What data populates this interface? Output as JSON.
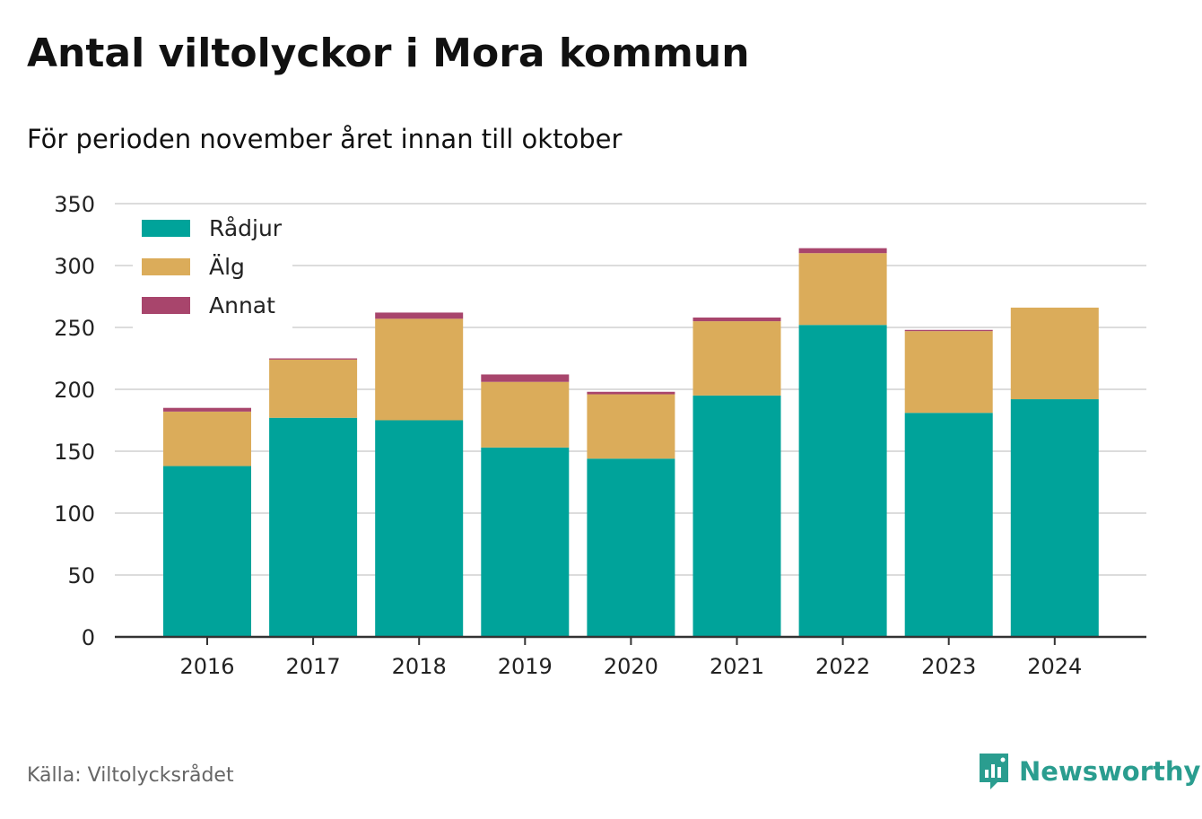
{
  "title": "Antal viltolyckor i Mora kommun",
  "subtitle": "För perioden november året innan till oktober",
  "source": "Källa: Viltolycksrådet",
  "brand": "Newsworthy",
  "colors": {
    "Rådjur": "#00a39a",
    "Älg": "#dbac5a",
    "Annat": "#a8456c",
    "grid": "#dcdcdc",
    "axis": "#333333",
    "brand": "#2a9d8f"
  },
  "chart_data": {
    "type": "bar",
    "stacked": true,
    "categories": [
      "2016",
      "2017",
      "2018",
      "2019",
      "2020",
      "2021",
      "2022",
      "2023",
      "2024"
    ],
    "series": [
      {
        "name": "Rådjur",
        "values": [
          138,
          177,
          175,
          153,
          144,
          195,
          252,
          181,
          192
        ]
      },
      {
        "name": "Älg",
        "values": [
          44,
          47,
          82,
          53,
          52,
          60,
          58,
          66,
          74
        ]
      },
      {
        "name": "Annat",
        "values": [
          3,
          1,
          5,
          6,
          2,
          3,
          4,
          1,
          0
        ]
      }
    ],
    "ylim": [
      0,
      350
    ],
    "yticks": [
      0,
      50,
      100,
      150,
      200,
      250,
      300,
      350
    ],
    "xlabel": "",
    "ylabel": "",
    "grid": true,
    "legend": "top-left"
  }
}
